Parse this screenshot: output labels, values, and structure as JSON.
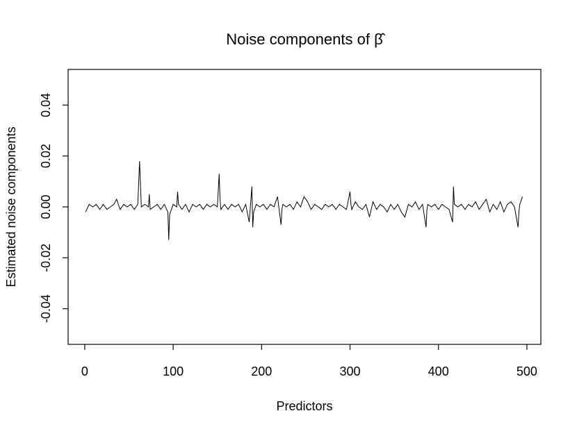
{
  "chart_data": {
    "type": "line",
    "title": "Noise components of β̂",
    "xlabel": "Predictors",
    "ylabel": "Estimated noise components",
    "x": [
      1,
      5,
      9,
      13,
      17,
      21,
      25,
      29,
      33,
      36,
      40,
      44,
      48,
      52,
      56,
      60,
      62,
      63,
      64,
      68,
      72,
      73,
      74,
      78,
      82,
      86,
      90,
      94,
      95,
      96,
      100,
      104,
      105,
      106,
      110,
      114,
      118,
      122,
      126,
      130,
      134,
      138,
      142,
      146,
      150,
      152,
      153,
      154,
      158,
      162,
      166,
      170,
      174,
      178,
      182,
      186,
      189,
      190,
      191,
      194,
      198,
      202,
      206,
      210,
      214,
      218,
      222,
      223,
      224,
      228,
      232,
      236,
      240,
      244,
      248,
      252,
      256,
      260,
      264,
      268,
      272,
      276,
      280,
      284,
      288,
      292,
      296,
      300,
      301,
      302,
      306,
      310,
      314,
      318,
      322,
      326,
      330,
      334,
      338,
      342,
      346,
      350,
      354,
      358,
      362,
      366,
      370,
      374,
      378,
      382,
      386,
      387,
      388,
      392,
      396,
      400,
      404,
      408,
      412,
      416,
      417,
      418,
      422,
      426,
      430,
      434,
      438,
      442,
      446,
      450,
      454,
      458,
      462,
      466,
      470,
      474,
      478,
      482,
      486,
      490,
      491,
      492,
      495
    ],
    "series": [
      {
        "name": "noise",
        "color": "#000000",
        "values": [
          -0.002,
          0.001,
          0,
          0.001,
          -0.001,
          0.001,
          -0.001,
          0,
          0.001,
          0.003,
          -0.001,
          0.001,
          0,
          0.001,
          -0.001,
          0.001,
          0.018,
          0.009,
          0,
          0.001,
          0,
          0.005,
          -0.001,
          0,
          0.001,
          -0.001,
          0.001,
          -0.002,
          -0.013,
          -0.003,
          0.001,
          0,
          0.006,
          0.001,
          -0.001,
          0.001,
          -0.002,
          0.001,
          0,
          0.001,
          -0.001,
          0.001,
          0,
          0.001,
          0,
          0.013,
          0.003,
          -0.001,
          0.001,
          -0.001,
          0.001,
          0,
          0.001,
          -0.002,
          0.001,
          -0.006,
          0.008,
          -0.008,
          -0.002,
          0.001,
          0,
          0.001,
          -0.001,
          0.001,
          0,
          0.004,
          -0.007,
          -0.001,
          0.001,
          0,
          0.001,
          -0.001,
          0.002,
          0,
          0.004,
          0.002,
          -0.001,
          0.001,
          0,
          -0.001,
          0.001,
          0,
          0.001,
          -0.001,
          0.001,
          0,
          -0.001,
          0.006,
          0.001,
          -0.001,
          0.002,
          0,
          -0.001,
          0.001,
          -0.004,
          0.002,
          -0.001,
          0.001,
          0,
          -0.002,
          0.001,
          -0.001,
          0.001,
          -0.002,
          -0.004,
          0.001,
          0,
          0.002,
          -0.001,
          0.001,
          -0.008,
          -0.001,
          0.001,
          0,
          0.001,
          -0.001,
          0.001,
          0,
          -0.001,
          -0.006,
          0.008,
          0.001,
          0,
          0.001,
          -0.001,
          0.001,
          0,
          0.002,
          -0.001,
          0.001,
          0.003,
          -0.002,
          0.001,
          -0.001,
          0.002,
          -0.002,
          0.001,
          0.002,
          0,
          -0.008,
          -0.002,
          0.001,
          0.004
        ]
      }
    ],
    "xlim": [
      -18.8,
      515.8
    ],
    "ylim": [
      -0.054,
      0.054
    ],
    "xticks": [
      0,
      100,
      200,
      300,
      400,
      500
    ],
    "yticks": [
      -0.04,
      -0.02,
      {
        "value": 0,
        "label": "0.00"
      },
      0.02,
      0.04
    ]
  }
}
